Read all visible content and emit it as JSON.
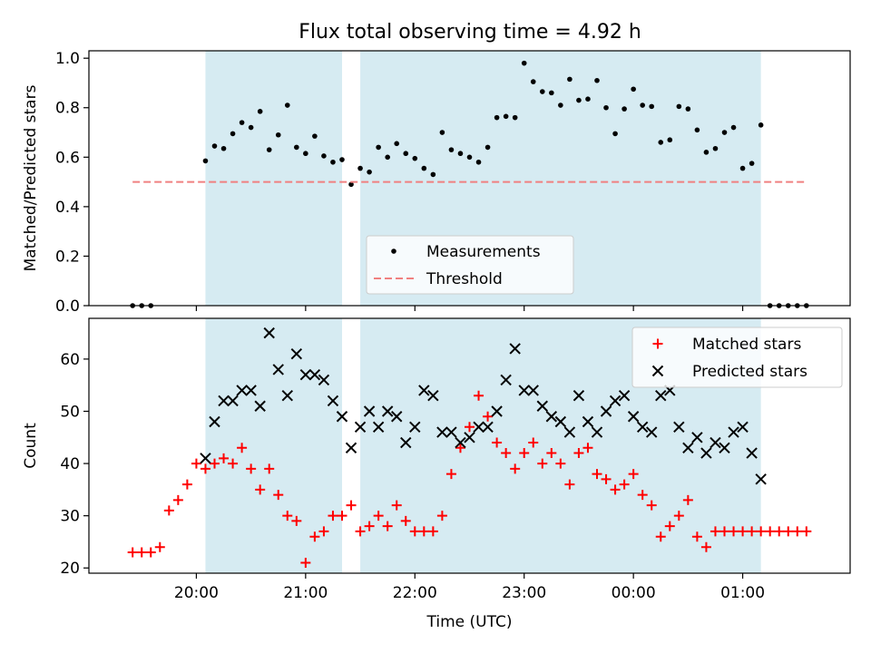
{
  "chart_data": [
    {
      "type": "scatter",
      "title": "Flux total observing time = 4.92 h",
      "ylabel": "Matched/Predicted stars",
      "xlabel": "",
      "ylim": [
        0,
        1.03
      ],
      "yticks": [
        0.0,
        0.2,
        0.4,
        0.6,
        0.8,
        1.0
      ],
      "ytick_labels": [
        "0.0",
        "0.2",
        "0.4",
        "0.6",
        "0.8",
        "1.0"
      ],
      "x_unit": "minutes after 19:00 UTC",
      "shaded_intervals": [
        [
          65,
          140
        ],
        [
          150,
          370
        ]
      ],
      "series": [
        {
          "name": "Measurements",
          "marker": "dot",
          "color": "#000000",
          "x": [
            25,
            30,
            35,
            65,
            70,
            75,
            80,
            85,
            90,
            95,
            100,
            105,
            110,
            115,
            120,
            125,
            130,
            135,
            140,
            145,
            150,
            155,
            160,
            165,
            170,
            175,
            180,
            185,
            190,
            195,
            200,
            205,
            210,
            215,
            220,
            225,
            230,
            235,
            240,
            245,
            250,
            255,
            260,
            265,
            270,
            275,
            280,
            285,
            290,
            295,
            300,
            305,
            310,
            315,
            320,
            325,
            330,
            335,
            340,
            345,
            350,
            355,
            360,
            365,
            370,
            375,
            380,
            385,
            390,
            395
          ],
          "y": [
            0,
            0,
            0,
            0.585,
            0.645,
            0.635,
            0.695,
            0.74,
            0.72,
            0.785,
            0.63,
            0.69,
            0.81,
            0.64,
            0.615,
            0.685,
            0.605,
            0.58,
            0.59,
            0.49,
            0.555,
            0.54,
            0.64,
            0.6,
            0.655,
            0.615,
            0.595,
            0.555,
            0.53,
            0.7,
            0.63,
            0.615,
            0.6,
            0.58,
            0.64,
            0.76,
            0.765,
            0.76,
            0.98,
            0.905,
            0.865,
            0.86,
            0.81,
            0.915,
            0.83,
            0.835,
            0.91,
            0.8,
            0.695,
            0.795,
            0.875,
            0.81,
            0.805,
            0.66,
            0.67,
            0.805,
            0.795,
            0.71,
            0.62,
            0.635,
            0.7,
            0.72,
            0.555,
            0.575,
            0.73,
            0,
            0,
            0,
            0,
            0
          ]
        },
        {
          "name": "Threshold",
          "marker": "dashed-line",
          "color": "#f08080",
          "x": [
            25,
            395
          ],
          "y": [
            0.5,
            0.5
          ]
        }
      ],
      "legend": "lower-center"
    },
    {
      "type": "scatter",
      "title": "",
      "ylabel": "Count",
      "xlabel": "Time (UTC)",
      "ylim": [
        19,
        67.8
      ],
      "yticks": [
        20,
        30,
        40,
        50,
        60
      ],
      "ytick_labels": [
        "20",
        "30",
        "40",
        "50",
        "60"
      ],
      "x_unit": "minutes after 19:00 UTC",
      "xticks": [
        60,
        120,
        180,
        240,
        300,
        360
      ],
      "xtick_labels": [
        "20:00",
        "21:00",
        "22:00",
        "23:00",
        "00:00",
        "01:00"
      ],
      "xlim": [
        1,
        419
      ],
      "shaded_intervals": [
        [
          65,
          140
        ],
        [
          150,
          370
        ]
      ],
      "series": [
        {
          "name": "Matched stars",
          "marker": "plus",
          "color": "#ff0000",
          "x": [
            25,
            30,
            35,
            40,
            45,
            50,
            55,
            60,
            65,
            70,
            75,
            80,
            85,
            90,
            95,
            100,
            105,
            110,
            115,
            120,
            125,
            130,
            135,
            140,
            145,
            150,
            155,
            160,
            165,
            170,
            175,
            180,
            185,
            190,
            195,
            200,
            205,
            210,
            215,
            220,
            225,
            230,
            235,
            240,
            245,
            250,
            255,
            260,
            265,
            270,
            275,
            280,
            285,
            290,
            295,
            300,
            305,
            310,
            315,
            320,
            325,
            330,
            335,
            340,
            345,
            350,
            355,
            360,
            365,
            370,
            375,
            380,
            385,
            390,
            395
          ],
          "y": [
            23,
            23,
            23,
            24,
            31,
            33,
            36,
            40,
            39,
            40,
            41,
            40,
            43,
            39,
            35,
            39,
            34,
            30,
            29,
            21,
            26,
            27,
            30,
            30,
            32,
            27,
            28,
            30,
            28,
            32,
            29,
            27,
            27,
            27,
            30,
            38,
            43,
            47,
            53,
            49,
            44,
            42,
            39,
            42,
            44,
            40,
            42,
            40,
            36,
            42,
            43,
            38,
            37,
            35,
            36,
            38,
            34,
            32,
            26,
            28,
            30,
            33,
            26,
            24,
            27,
            27,
            27,
            27,
            27,
            27,
            27,
            27,
            27,
            27,
            27
          ]
        },
        {
          "name": "Predicted stars",
          "marker": "x",
          "color": "#000000",
          "x": [
            65,
            70,
            75,
            80,
            85,
            90,
            95,
            100,
            105,
            110,
            115,
            120,
            125,
            130,
            135,
            140,
            145,
            150,
            155,
            160,
            165,
            170,
            175,
            180,
            185,
            190,
            195,
            200,
            205,
            210,
            215,
            220,
            225,
            230,
            235,
            240,
            245,
            250,
            255,
            260,
            265,
            270,
            275,
            280,
            285,
            290,
            295,
            300,
            305,
            310,
            315,
            320,
            325,
            330,
            335,
            340,
            345,
            350,
            355,
            360,
            365,
            370
          ],
          "y": [
            41,
            48,
            52,
            52,
            54,
            54,
            51,
            65,
            58,
            53,
            61,
            57,
            57,
            56,
            52,
            49,
            43,
            47,
            50,
            47,
            50,
            49,
            44,
            47,
            54,
            53,
            46,
            46,
            44,
            45,
            47,
            47,
            50,
            56,
            62,
            54,
            54,
            51,
            49,
            48,
            46,
            53,
            48,
            46,
            50,
            52,
            53,
            49,
            47,
            46,
            53,
            54,
            47,
            43,
            45,
            42,
            44,
            43,
            46,
            47,
            42,
            37
          ]
        }
      ],
      "legend": "top-right"
    }
  ]
}
